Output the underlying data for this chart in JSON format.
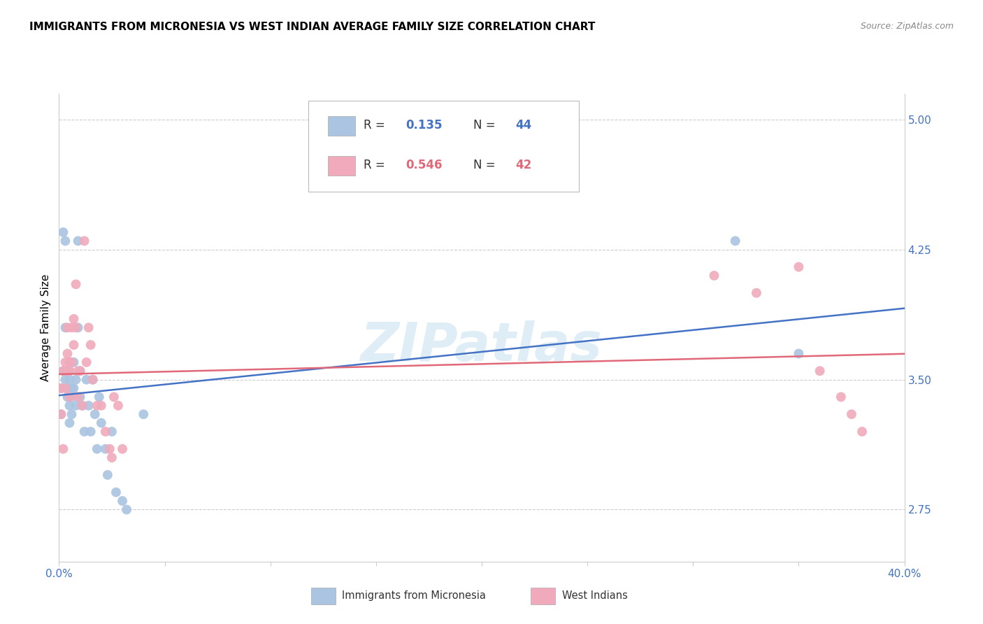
{
  "title": "IMMIGRANTS FROM MICRONESIA VS WEST INDIAN AVERAGE FAMILY SIZE CORRELATION CHART",
  "source": "Source: ZipAtlas.com",
  "ylabel": "Average Family Size",
  "yticks": [
    2.75,
    3.5,
    4.25,
    5.0
  ],
  "xlim": [
    0.0,
    0.4
  ],
  "ylim": [
    2.45,
    5.15
  ],
  "watermark": "ZIPatlas",
  "blue_label": "Immigrants from Micronesia",
  "pink_label": "West Indians",
  "blue_R": 0.135,
  "blue_N": 44,
  "pink_R": 0.546,
  "pink_N": 42,
  "blue_color": "#aac4e2",
  "pink_color": "#f0aabc",
  "blue_line_color": "#4472c4",
  "pink_line_color": "#e06878",
  "blue_x": [
    0.001,
    0.001,
    0.002,
    0.002,
    0.003,
    0.003,
    0.003,
    0.004,
    0.004,
    0.004,
    0.005,
    0.005,
    0.005,
    0.005,
    0.006,
    0.006,
    0.006,
    0.007,
    0.007,
    0.008,
    0.008,
    0.009,
    0.009,
    0.01,
    0.01,
    0.011,
    0.012,
    0.013,
    0.014,
    0.015,
    0.016,
    0.017,
    0.018,
    0.019,
    0.02,
    0.022,
    0.023,
    0.025,
    0.027,
    0.03,
    0.032,
    0.04,
    0.32,
    0.35
  ],
  "blue_y": [
    3.45,
    3.3,
    4.35,
    3.55,
    4.3,
    3.8,
    3.5,
    3.55,
    3.45,
    3.4,
    3.55,
    3.5,
    3.35,
    3.25,
    3.45,
    3.4,
    3.3,
    3.6,
    3.45,
    3.5,
    3.35,
    4.3,
    3.8,
    3.55,
    3.4,
    3.35,
    3.2,
    3.5,
    3.35,
    3.2,
    3.5,
    3.3,
    3.1,
    3.4,
    3.25,
    3.1,
    2.95,
    3.2,
    2.85,
    2.8,
    2.75,
    3.3,
    4.3,
    3.65
  ],
  "pink_x": [
    0.001,
    0.001,
    0.002,
    0.002,
    0.003,
    0.003,
    0.004,
    0.004,
    0.004,
    0.005,
    0.005,
    0.005,
    0.006,
    0.006,
    0.007,
    0.007,
    0.008,
    0.008,
    0.009,
    0.009,
    0.01,
    0.011,
    0.012,
    0.013,
    0.014,
    0.015,
    0.016,
    0.018,
    0.02,
    0.022,
    0.024,
    0.025,
    0.026,
    0.028,
    0.03,
    0.31,
    0.33,
    0.35,
    0.36,
    0.37,
    0.375,
    0.38
  ],
  "pink_y": [
    3.45,
    3.3,
    3.55,
    3.1,
    3.6,
    3.45,
    3.8,
    3.65,
    3.55,
    3.6,
    3.55,
    3.4,
    3.8,
    3.6,
    3.85,
    3.7,
    4.05,
    3.8,
    3.55,
    3.4,
    3.55,
    3.35,
    4.3,
    3.6,
    3.8,
    3.7,
    3.5,
    3.35,
    3.35,
    3.2,
    3.1,
    3.05,
    3.4,
    3.35,
    3.1,
    4.1,
    4.0,
    4.15,
    3.55,
    3.4,
    3.3,
    3.2
  ]
}
